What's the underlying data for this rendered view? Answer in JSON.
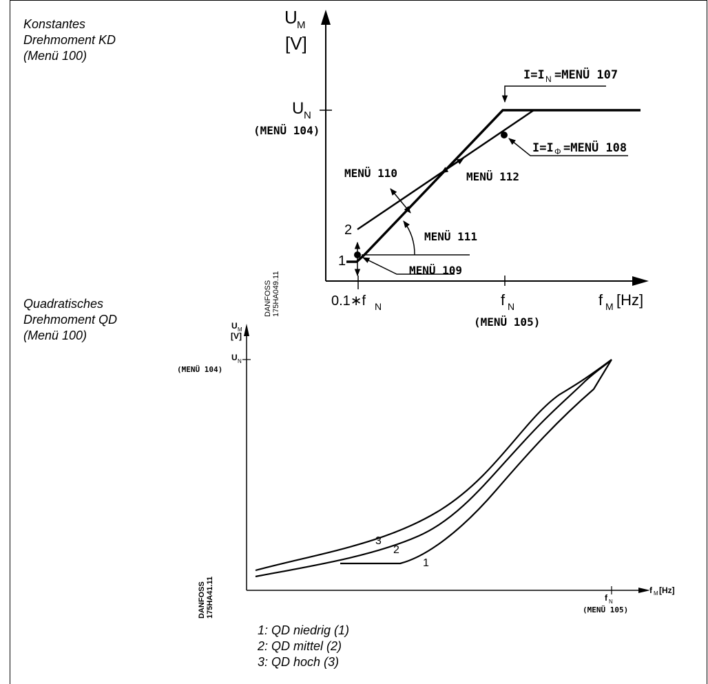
{
  "section_kd": {
    "line1": "Konstantes",
    "line2": "Drehmoment KD",
    "line3": "(Menü 100)"
  },
  "section_qd": {
    "line1": "Quadratisches",
    "line2": "Drehmoment QD",
    "line3": "(Menü 100)"
  },
  "chart_kd": {
    "y_axis_label_main": "U",
    "y_axis_label_sub": "M",
    "y_axis_unit": "[V]",
    "un_main": "U",
    "un_sub": "N",
    "menu104": "(MENÜ 104)",
    "i_in_label": "I=I",
    "i_in_sub": "N",
    "i_in_value": "=MENÜ 107",
    "i_phi_label": "I=I",
    "i_phi_sub": "Φ",
    "i_phi_value": "=MENÜ 108",
    "menu110": "MENÜ 110",
    "menu112": "MENÜ 112",
    "menu111": "MENÜ 111",
    "menu109": "MENÜ 109",
    "curve1": "1",
    "curve2": "2",
    "x_tick1_pre": "0.1∗f",
    "x_tick1_sub": "N",
    "x_tick2_main": "f",
    "x_tick2_sub": "N",
    "menu105": "(MENÜ 105)",
    "x_axis_main": "f",
    "x_axis_sub": "M",
    "x_axis_unit": "[Hz]",
    "code": "DANFOSS",
    "code2": "175HA049.11"
  },
  "chart_qd": {
    "y_axis_main": "U",
    "y_axis_sub": "M",
    "y_axis_unit": "[V]",
    "un_main": "U",
    "un_sub": "N",
    "menu104": "(MENÜ 104)",
    "x_axis_main": "f",
    "x_axis_sub": "M",
    "x_axis_unit": "[Hz]",
    "fn_main": "f",
    "fn_sub": "N",
    "menu105": "(MENÜ 105)",
    "curve1": "1",
    "curve2": "2",
    "curve3": "3",
    "code": "DANFOSS",
    "code2": "175HA41.11"
  },
  "legend": {
    "item1": "1:  QD niedrig (1)",
    "item2": "2:  QD mittel (2)",
    "item3": "3:  QD hoch (3)"
  }
}
